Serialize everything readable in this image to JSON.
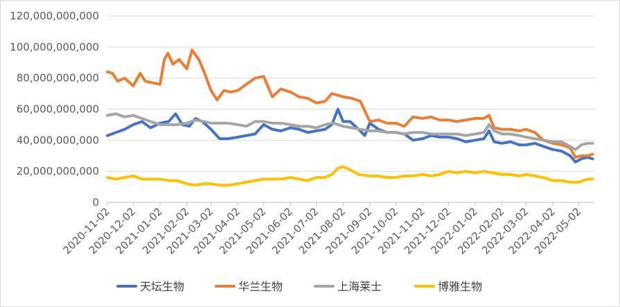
{
  "chart_data": {
    "type": "line",
    "title": "",
    "xlabel": "",
    "ylabel": "",
    "ylim": [
      0,
      120000000000
    ],
    "yticks": [
      0,
      20000000000,
      40000000000,
      60000000000,
      80000000000,
      100000000000,
      120000000000
    ],
    "ytick_labels": [
      "0",
      "20,000,000,000",
      "40,000,000,000",
      "60,000,000,000",
      "80,000,000,000",
      "100,000,000,000",
      "120,000,000,000"
    ],
    "xlim": [
      "2020-11-02",
      "2022-05-20"
    ],
    "xticks": [
      "2020-11-02",
      "2020-12-02",
      "2021-01-02",
      "2021-02-02",
      "2021-03-02",
      "2021-04-02",
      "2021-05-02",
      "2021-06-02",
      "2021-07-02",
      "2021-08-02",
      "2021-09-02",
      "2021-10-02",
      "2021-11-02",
      "2021-12-02",
      "2022-01-02",
      "2022-02-02",
      "2022-03-02",
      "2022-04-02",
      "2022-05-02"
    ],
    "grid": true,
    "legend_position": "bottom",
    "series": [
      {
        "name": "天坛生物",
        "color": "#4472C4",
        "points": [
          [
            "2020-11-02",
            43000000000
          ],
          [
            "2020-11-12",
            45000000000
          ],
          [
            "2020-11-22",
            47000000000
          ],
          [
            "2020-12-02",
            50000000000
          ],
          [
            "2020-12-12",
            52000000000
          ],
          [
            "2020-12-22",
            48000000000
          ],
          [
            "2021-01-02",
            51000000000
          ],
          [
            "2021-01-12",
            52000000000
          ],
          [
            "2021-01-20",
            57000000000
          ],
          [
            "2021-01-28",
            50000000000
          ],
          [
            "2021-02-05",
            49000000000
          ],
          [
            "2021-02-12",
            54000000000
          ],
          [
            "2021-02-20",
            52000000000
          ],
          [
            "2021-03-02",
            47000000000
          ],
          [
            "2021-03-12",
            41000000000
          ],
          [
            "2021-03-22",
            41000000000
          ],
          [
            "2021-04-02",
            42000000000
          ],
          [
            "2021-04-12",
            43000000000
          ],
          [
            "2021-04-22",
            44000000000
          ],
          [
            "2021-05-02",
            50000000000
          ],
          [
            "2021-05-12",
            47000000000
          ],
          [
            "2021-05-22",
            46000000000
          ],
          [
            "2021-06-02",
            48000000000
          ],
          [
            "2021-06-12",
            47000000000
          ],
          [
            "2021-06-22",
            45000000000
          ],
          [
            "2021-07-02",
            46000000000
          ],
          [
            "2021-07-12",
            47000000000
          ],
          [
            "2021-07-20",
            50000000000
          ],
          [
            "2021-07-27",
            60000000000
          ],
          [
            "2021-08-02",
            52000000000
          ],
          [
            "2021-08-10",
            52000000000
          ],
          [
            "2021-08-20",
            47000000000
          ],
          [
            "2021-08-27",
            43000000000
          ],
          [
            "2021-09-02",
            51000000000
          ],
          [
            "2021-09-12",
            47000000000
          ],
          [
            "2021-09-22",
            45000000000
          ],
          [
            "2021-10-02",
            45000000000
          ],
          [
            "2021-10-12",
            44000000000
          ],
          [
            "2021-10-22",
            40000000000
          ],
          [
            "2021-11-02",
            41000000000
          ],
          [
            "2021-11-12",
            43000000000
          ],
          [
            "2021-11-22",
            42000000000
          ],
          [
            "2021-12-02",
            42000000000
          ],
          [
            "2021-12-12",
            41000000000
          ],
          [
            "2021-12-22",
            39000000000
          ],
          [
            "2022-01-02",
            40000000000
          ],
          [
            "2022-01-12",
            41000000000
          ],
          [
            "2022-01-18",
            46000000000
          ],
          [
            "2022-01-24",
            39000000000
          ],
          [
            "2022-02-02",
            38000000000
          ],
          [
            "2022-02-12",
            39000000000
          ],
          [
            "2022-02-22",
            37000000000
          ],
          [
            "2022-03-02",
            37000000000
          ],
          [
            "2022-03-12",
            38000000000
          ],
          [
            "2022-03-22",
            36000000000
          ],
          [
            "2022-04-02",
            34000000000
          ],
          [
            "2022-04-12",
            33000000000
          ],
          [
            "2022-04-22",
            30000000000
          ],
          [
            "2022-04-28",
            26000000000
          ],
          [
            "2022-05-05",
            28000000000
          ],
          [
            "2022-05-12",
            29000000000
          ],
          [
            "2022-05-18",
            28000000000
          ]
        ]
      },
      {
        "name": "华兰生物",
        "color": "#ED7D31",
        "points": [
          [
            "2020-11-02",
            84000000000
          ],
          [
            "2020-11-08",
            83000000000
          ],
          [
            "2020-11-14",
            78000000000
          ],
          [
            "2020-11-22",
            80000000000
          ],
          [
            "2020-12-02",
            75000000000
          ],
          [
            "2020-12-10",
            83000000000
          ],
          [
            "2020-12-16",
            78000000000
          ],
          [
            "2020-12-24",
            77000000000
          ],
          [
            "2021-01-02",
            76000000000
          ],
          [
            "2021-01-07",
            92000000000
          ],
          [
            "2021-01-11",
            96000000000
          ],
          [
            "2021-01-17",
            89000000000
          ],
          [
            "2021-01-24",
            92000000000
          ],
          [
            "2021-02-02",
            86000000000
          ],
          [
            "2021-02-08",
            98000000000
          ],
          [
            "2021-02-16",
            92000000000
          ],
          [
            "2021-02-22",
            84000000000
          ],
          [
            "2021-03-02",
            72000000000
          ],
          [
            "2021-03-09",
            66000000000
          ],
          [
            "2021-03-17",
            72000000000
          ],
          [
            "2021-03-25",
            71000000000
          ],
          [
            "2021-04-02",
            72000000000
          ],
          [
            "2021-04-12",
            76000000000
          ],
          [
            "2021-04-22",
            80000000000
          ],
          [
            "2021-05-02",
            81000000000
          ],
          [
            "2021-05-12",
            68000000000
          ],
          [
            "2021-05-22",
            73000000000
          ],
          [
            "2021-06-02",
            71000000000
          ],
          [
            "2021-06-12",
            68000000000
          ],
          [
            "2021-06-22",
            67000000000
          ],
          [
            "2021-07-02",
            64000000000
          ],
          [
            "2021-07-12",
            65000000000
          ],
          [
            "2021-07-20",
            70000000000
          ],
          [
            "2021-08-02",
            68000000000
          ],
          [
            "2021-08-12",
            67000000000
          ],
          [
            "2021-08-22",
            65000000000
          ],
          [
            "2021-09-02",
            52000000000
          ],
          [
            "2021-09-12",
            53000000000
          ],
          [
            "2021-09-22",
            51000000000
          ],
          [
            "2021-10-02",
            51000000000
          ],
          [
            "2021-10-12",
            49000000000
          ],
          [
            "2021-10-22",
            55000000000
          ],
          [
            "2021-11-02",
            54000000000
          ],
          [
            "2021-11-12",
            55000000000
          ],
          [
            "2021-11-22",
            53000000000
          ],
          [
            "2021-12-02",
            53000000000
          ],
          [
            "2021-12-12",
            52000000000
          ],
          [
            "2021-12-22",
            53000000000
          ],
          [
            "2022-01-02",
            54000000000
          ],
          [
            "2022-01-12",
            54000000000
          ],
          [
            "2022-01-18",
            56000000000
          ],
          [
            "2022-01-24",
            48000000000
          ],
          [
            "2022-02-02",
            47000000000
          ],
          [
            "2022-02-12",
            47000000000
          ],
          [
            "2022-02-22",
            46000000000
          ],
          [
            "2022-03-02",
            47000000000
          ],
          [
            "2022-03-12",
            45000000000
          ],
          [
            "2022-03-22",
            40000000000
          ],
          [
            "2022-04-02",
            38000000000
          ],
          [
            "2022-04-12",
            37000000000
          ],
          [
            "2022-04-22",
            35000000000
          ],
          [
            "2022-04-28",
            29000000000
          ],
          [
            "2022-05-05",
            30000000000
          ],
          [
            "2022-05-12",
            30000000000
          ],
          [
            "2022-05-18",
            31000000000
          ]
        ]
      },
      {
        "name": "上海莱士",
        "color": "#A5A5A5",
        "points": [
          [
            "2020-11-02",
            56000000000
          ],
          [
            "2020-11-12",
            57000000000
          ],
          [
            "2020-11-22",
            55000000000
          ],
          [
            "2020-12-02",
            56000000000
          ],
          [
            "2020-12-12",
            54000000000
          ],
          [
            "2020-12-22",
            52000000000
          ],
          [
            "2021-01-02",
            50000000000
          ],
          [
            "2021-01-12",
            50000000000
          ],
          [
            "2021-01-22",
            50000000000
          ],
          [
            "2021-02-02",
            51000000000
          ],
          [
            "2021-02-12",
            53000000000
          ],
          [
            "2021-02-22",
            52000000000
          ],
          [
            "2021-03-02",
            51000000000
          ],
          [
            "2021-03-12",
            51000000000
          ],
          [
            "2021-03-22",
            51000000000
          ],
          [
            "2021-04-02",
            50000000000
          ],
          [
            "2021-04-12",
            49000000000
          ],
          [
            "2021-04-22",
            52000000000
          ],
          [
            "2021-05-02",
            52000000000
          ],
          [
            "2021-05-12",
            51000000000
          ],
          [
            "2021-05-22",
            51000000000
          ],
          [
            "2021-06-02",
            50000000000
          ],
          [
            "2021-06-12",
            49000000000
          ],
          [
            "2021-06-22",
            49000000000
          ],
          [
            "2021-07-02",
            48000000000
          ],
          [
            "2021-07-12",
            50000000000
          ],
          [
            "2021-07-22",
            51000000000
          ],
          [
            "2021-08-02",
            49000000000
          ],
          [
            "2021-08-12",
            48000000000
          ],
          [
            "2021-08-22",
            47000000000
          ],
          [
            "2021-09-02",
            46000000000
          ],
          [
            "2021-09-12",
            46000000000
          ],
          [
            "2021-09-22",
            45000000000
          ],
          [
            "2021-10-02",
            45000000000
          ],
          [
            "2021-10-12",
            44000000000
          ],
          [
            "2021-10-22",
            45000000000
          ],
          [
            "2021-11-02",
            45000000000
          ],
          [
            "2021-11-12",
            44000000000
          ],
          [
            "2021-11-22",
            44000000000
          ],
          [
            "2021-12-02",
            44000000000
          ],
          [
            "2021-12-12",
            44000000000
          ],
          [
            "2021-12-22",
            43000000000
          ],
          [
            "2022-01-02",
            44000000000
          ],
          [
            "2022-01-12",
            45000000000
          ],
          [
            "2022-01-18",
            50000000000
          ],
          [
            "2022-01-24",
            46000000000
          ],
          [
            "2022-02-02",
            44000000000
          ],
          [
            "2022-02-12",
            44000000000
          ],
          [
            "2022-02-22",
            43000000000
          ],
          [
            "2022-03-02",
            42000000000
          ],
          [
            "2022-03-12",
            41000000000
          ],
          [
            "2022-03-22",
            40000000000
          ],
          [
            "2022-04-02",
            39000000000
          ],
          [
            "2022-04-12",
            39000000000
          ],
          [
            "2022-04-22",
            36000000000
          ],
          [
            "2022-04-28",
            34000000000
          ],
          [
            "2022-05-05",
            37000000000
          ],
          [
            "2022-05-12",
            38000000000
          ],
          [
            "2022-05-18",
            38000000000
          ]
        ]
      },
      {
        "name": "博雅生物",
        "color": "#FFC000",
        "points": [
          [
            "2020-11-02",
            16000000000
          ],
          [
            "2020-11-12",
            15000000000
          ],
          [
            "2020-11-22",
            16000000000
          ],
          [
            "2020-12-02",
            17000000000
          ],
          [
            "2020-12-12",
            15000000000
          ],
          [
            "2020-12-22",
            15000000000
          ],
          [
            "2021-01-02",
            15000000000
          ],
          [
            "2021-01-12",
            14000000000
          ],
          [
            "2021-01-22",
            14000000000
          ],
          [
            "2021-02-02",
            12000000000
          ],
          [
            "2021-02-12",
            11000000000
          ],
          [
            "2021-02-22",
            12000000000
          ],
          [
            "2021-03-02",
            12000000000
          ],
          [
            "2021-03-12",
            11000000000
          ],
          [
            "2021-03-22",
            11000000000
          ],
          [
            "2021-04-02",
            12000000000
          ],
          [
            "2021-04-12",
            13000000000
          ],
          [
            "2021-04-22",
            14000000000
          ],
          [
            "2021-05-02",
            15000000000
          ],
          [
            "2021-05-12",
            15000000000
          ],
          [
            "2021-05-22",
            15000000000
          ],
          [
            "2021-06-02",
            16000000000
          ],
          [
            "2021-06-12",
            15000000000
          ],
          [
            "2021-06-22",
            14000000000
          ],
          [
            "2021-07-02",
            16000000000
          ],
          [
            "2021-07-12",
            16000000000
          ],
          [
            "2021-07-20",
            18000000000
          ],
          [
            "2021-07-27",
            22000000000
          ],
          [
            "2021-08-02",
            23000000000
          ],
          [
            "2021-08-10",
            21000000000
          ],
          [
            "2021-08-20",
            18000000000
          ],
          [
            "2021-09-02",
            17000000000
          ],
          [
            "2021-09-12",
            17000000000
          ],
          [
            "2021-09-22",
            16000000000
          ],
          [
            "2021-10-02",
            16000000000
          ],
          [
            "2021-10-12",
            17000000000
          ],
          [
            "2021-10-22",
            17000000000
          ],
          [
            "2021-11-02",
            18000000000
          ],
          [
            "2021-11-12",
            17000000000
          ],
          [
            "2021-11-22",
            18000000000
          ],
          [
            "2021-12-02",
            20000000000
          ],
          [
            "2021-12-12",
            19000000000
          ],
          [
            "2021-12-22",
            20000000000
          ],
          [
            "2022-01-02",
            19000000000
          ],
          [
            "2022-01-12",
            20000000000
          ],
          [
            "2022-01-22",
            19000000000
          ],
          [
            "2022-02-02",
            18000000000
          ],
          [
            "2022-02-12",
            18000000000
          ],
          [
            "2022-02-22",
            17000000000
          ],
          [
            "2022-03-02",
            18000000000
          ],
          [
            "2022-03-12",
            17000000000
          ],
          [
            "2022-03-22",
            16000000000
          ],
          [
            "2022-04-02",
            14000000000
          ],
          [
            "2022-04-12",
            14000000000
          ],
          [
            "2022-04-22",
            13000000000
          ],
          [
            "2022-05-02",
            13000000000
          ],
          [
            "2022-05-12",
            15000000000
          ],
          [
            "2022-05-18",
            15000000000
          ]
        ]
      }
    ]
  }
}
